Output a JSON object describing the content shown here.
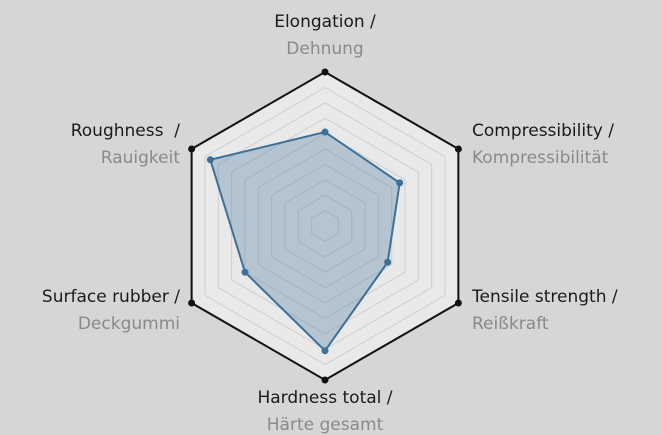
{
  "chart_data": {
    "type": "radar",
    "categories": [
      "Elongation /",
      "Compressibility /",
      "Tensile strength /",
      "Hardness total /",
      "Surface rubber /",
      "Roughness  /"
    ],
    "categories_translation": [
      "Dehnung",
      "Kompressibilität",
      "Reißkraft",
      "Härte gesamt",
      "Deckgummi",
      "Rauigkeit"
    ],
    "values": [
      6.1,
      5.6,
      4.7,
      8.1,
      6.0,
      8.6
    ],
    "color": "#3d7099",
    "rlim": [
      0,
      10
    ],
    "rticks": [
      1,
      2,
      3,
      4,
      5,
      6,
      7,
      8,
      9,
      10
    ],
    "grid": true
  }
}
